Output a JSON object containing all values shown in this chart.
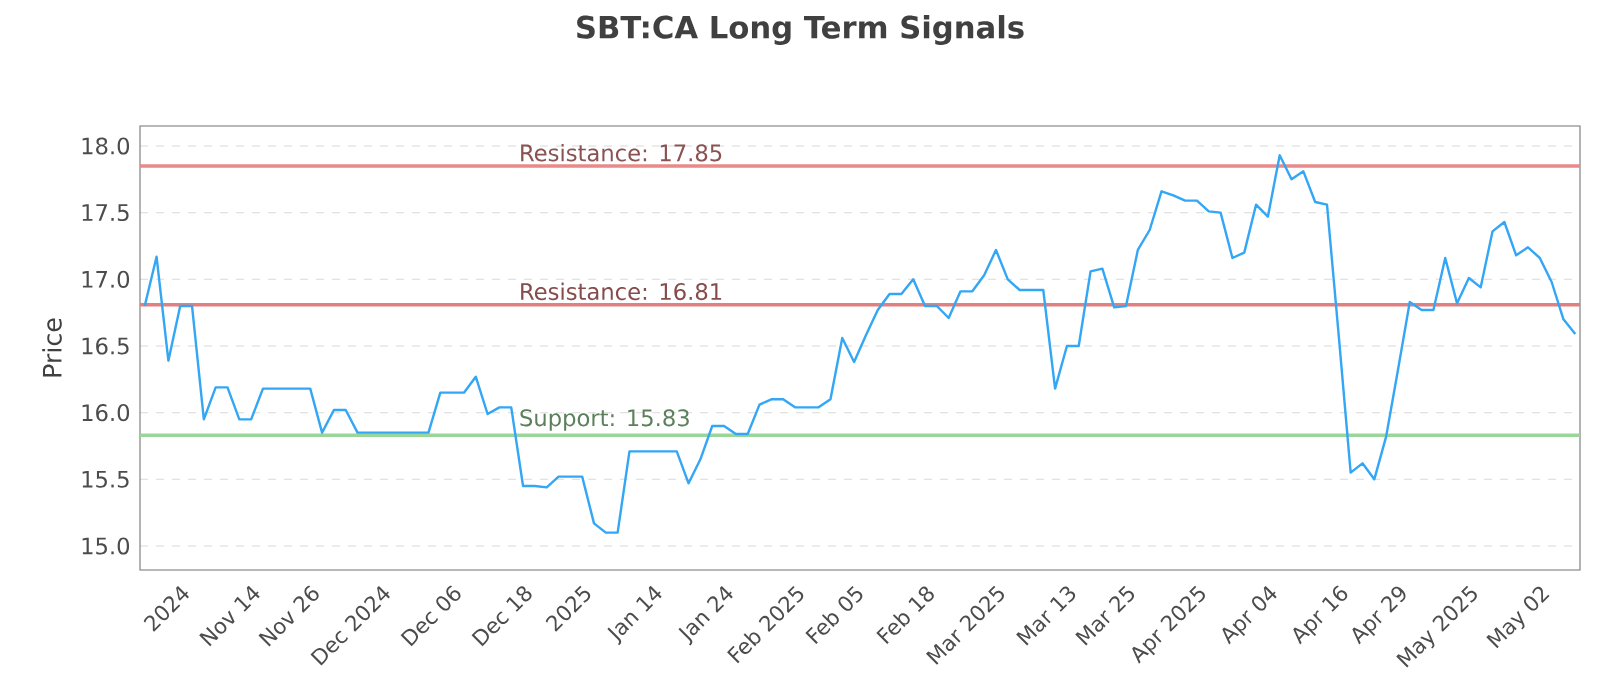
{
  "chart_data": {
    "type": "line",
    "title": "SBT:CA Long Term Signals",
    "ylabel": "Price",
    "categories": [
      null,
      null,
      null,
      "2024",
      null,
      null,
      null,
      null,
      null,
      "Nov 14",
      null,
      null,
      null,
      null,
      "Nov 26",
      null,
      null,
      null,
      null,
      null,
      "Dec 2024",
      null,
      null,
      null,
      null,
      null,
      "Dec 06",
      null,
      null,
      null,
      null,
      null,
      "Dec 18",
      null,
      null,
      null,
      null,
      "2025",
      null,
      null,
      null,
      null,
      null,
      "Jan 14",
      null,
      null,
      null,
      null,
      null,
      "Jan 24",
      null,
      null,
      null,
      null,
      null,
      "Feb 2025",
      null,
      null,
      null,
      null,
      "Feb 05",
      null,
      null,
      null,
      null,
      null,
      "Feb 18",
      null,
      null,
      null,
      null,
      null,
      "Mar 2025",
      null,
      null,
      null,
      null,
      null,
      "Mar 13",
      null,
      null,
      null,
      null,
      "Mar 25",
      null,
      null,
      null,
      null,
      null,
      "Apr 2025",
      null,
      null,
      null,
      null,
      null,
      "Apr 04",
      null,
      null,
      null,
      null,
      null,
      "Apr 16",
      null,
      null,
      null,
      null,
      "Apr 29",
      null,
      null,
      null,
      null,
      null,
      "May 2025",
      null,
      null,
      null,
      null,
      null,
      "May 02",
      null,
      null,
      null
    ],
    "values": [
      16.8,
      17.17,
      16.39,
      16.8,
      16.8,
      15.95,
      16.19,
      16.19,
      15.95,
      15.95,
      16.18,
      16.18,
      16.18,
      16.18,
      16.18,
      15.85,
      16.02,
      16.02,
      15.85,
      15.85,
      15.85,
      15.85,
      15.85,
      15.85,
      15.85,
      16.15,
      16.15,
      16.15,
      16.27,
      15.99,
      16.04,
      16.04,
      15.45,
      15.45,
      15.44,
      15.52,
      15.52,
      15.52,
      15.17,
      15.1,
      15.1,
      15.71,
      15.71,
      15.71,
      15.71,
      15.71,
      15.47,
      15.65,
      15.9,
      15.9,
      15.84,
      15.84,
      16.06,
      16.1,
      16.1,
      16.04,
      16.04,
      16.04,
      16.1,
      16.56,
      16.38,
      16.58,
      16.77,
      16.89,
      16.89,
      17.0,
      16.8,
      16.8,
      16.71,
      16.91,
      16.91,
      17.03,
      17.22,
      17.0,
      16.92,
      16.92,
      16.92,
      16.18,
      16.5,
      16.5,
      17.06,
      17.08,
      16.79,
      16.8,
      17.22,
      17.37,
      17.66,
      17.63,
      17.59,
      17.59,
      17.51,
      17.5,
      17.16,
      17.2,
      17.56,
      17.47,
      17.93,
      17.75,
      17.81,
      17.58,
      17.56,
      16.57,
      15.55,
      15.62,
      15.5,
      15.82,
      16.32,
      16.83,
      16.77,
      16.77,
      17.16,
      16.82,
      17.01,
      16.94,
      17.36,
      17.43,
      17.18,
      17.24,
      17.16,
      16.98,
      16.7,
      16.59
    ],
    "color": "#33a6f5",
    "ylim": [
      14.82,
      18.15
    ],
    "yticks": [
      {
        "value": 15,
        "label": "15.0"
      },
      {
        "value": 15.5,
        "label": "15.5"
      },
      {
        "value": 16,
        "label": "16.0"
      },
      {
        "value": 16.5,
        "label": "16.5"
      },
      {
        "value": 17,
        "label": "17.0"
      },
      {
        "value": 17.5,
        "label": "17.5"
      },
      {
        "value": 18,
        "label": "18.0"
      }
    ],
    "grid": "y",
    "ref_lines": [
      {
        "axis": "y",
        "value": 17.85,
        "label": "Resistance: 17.85",
        "color": "#e88a8a"
      },
      {
        "axis": "y",
        "value": 16.81,
        "label": "Resistance: 16.81",
        "color": "#e08080"
      },
      {
        "axis": "y",
        "value": 15.83,
        "label": "Support: 15.83",
        "color": "#9ad69a"
      }
    ]
  }
}
